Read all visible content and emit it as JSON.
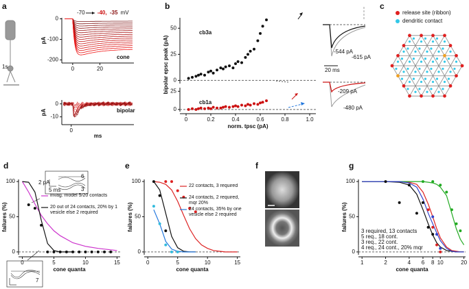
{
  "labels": {
    "panels": [
      "a",
      "b",
      "c",
      "d",
      "e",
      "f",
      "g"
    ],
    "a_header": [
      "-70",
      "-40,",
      "-35",
      "mV"
    ],
    "a_cell": "1s",
    "b_insets": [
      "-544 pA",
      "-615 pA",
      "20 ms",
      "-209 pA",
      "-480 pA"
    ],
    "c_legend": [
      "release site (ribbon)",
      "dendritic contact"
    ],
    "d_insets": [
      "6",
      "2 pA",
      "5 ms",
      "3",
      "7"
    ]
  },
  "chart_data": [
    {
      "type": "line",
      "label": "cone",
      "ylabel": "pA",
      "xlim": [
        -8,
        45
      ],
      "xticks": [
        0,
        20
      ],
      "ylim": [
        -215,
        5
      ],
      "yticks": [
        0,
        -100,
        -200
      ],
      "traces": "cone"
    },
    {
      "type": "line",
      "label": "bipolar",
      "ylabel": "pA",
      "xlabel": "ms",
      "xlim": [
        -3,
        20
      ],
      "xticks": [
        0
      ],
      "ylim": [
        -16,
        3
      ],
      "yticks": [
        0,
        -10
      ],
      "traces": "bipolar"
    },
    {
      "type": "scatter",
      "ylabel": "bipolar epsc peak (pA)",
      "xlim": [
        -0.05,
        1.05
      ],
      "ylim": [
        -3,
        60
      ],
      "yticks": [
        0,
        25,
        50
      ],
      "zero_line": true,
      "legend": "upper left",
      "legend_style": "label",
      "series": [
        {
          "name": "cb3a",
          "color": "#111111",
          "style": "points",
          "x": [
            0.02,
            0.05,
            0.08,
            0.1,
            0.12,
            0.15,
            0.18,
            0.2,
            0.22,
            0.25,
            0.28,
            0.3,
            0.32,
            0.35,
            0.38,
            0.4,
            0.42,
            0.45,
            0.48,
            0.5,
            0.52,
            0.55,
            0.58,
            0.6,
            0.62,
            0.65
          ],
          "values": [
            2,
            3,
            4,
            5,
            6,
            5,
            8,
            9,
            7,
            10,
            12,
            11,
            13,
            14,
            12,
            16,
            18,
            17,
            22,
            25,
            28,
            30,
            38,
            45,
            52,
            58
          ]
        }
      ]
    },
    {
      "type": "scatter",
      "xlabel": "norm. tpsc (pA)",
      "xlim": [
        -0.05,
        1.05
      ],
      "xticks": [
        0,
        0.2,
        0.4,
        0.6,
        0.8,
        {
          "value": 1,
          "label": "1.0"
        }
      ],
      "ylim": [
        -3,
        30
      ],
      "yticks": [
        0,
        25
      ],
      "zero_line": true,
      "legend": "upper left",
      "legend_style": "label",
      "series": [
        {
          "name": "cb1a",
          "color": "#cc1111",
          "style": "points",
          "x": [
            0.02,
            0.05,
            0.08,
            0.1,
            0.12,
            0.15,
            0.18,
            0.2,
            0.22,
            0.25,
            0.28,
            0.3,
            0.32,
            0.35,
            0.38,
            0.4,
            0.42,
            0.45,
            0.48,
            0.5,
            0.52,
            0.55,
            0.58,
            0.6,
            0.62,
            0.65
          ],
          "values": [
            0,
            1,
            0,
            1,
            2,
            1,
            2,
            1,
            3,
            2,
            2,
            3,
            4,
            3,
            4,
            5,
            4,
            6,
            5,
            7,
            6,
            8,
            7,
            9,
            10,
            12
          ]
        }
      ]
    },
    {
      "type": "line",
      "ylabel": "failures (%)",
      "xlabel": "cone quanta",
      "xlim": [
        -0.6,
        15.5
      ],
      "xticks": [
        0,
        5,
        10,
        15
      ],
      "ylim": [
        -4,
        103
      ],
      "yticks": [
        0,
        50,
        100
      ],
      "zero_line": true,
      "legend": "center right",
      "legend_style": "line",
      "series": [
        {
          "name": "invag. model 5/20 contacts",
          "color": "#cc33cc",
          "style": "line",
          "x": [
            0,
            1,
            2,
            3,
            4,
            5,
            6,
            8,
            10,
            12,
            15
          ],
          "values": [
            100,
            85,
            68,
            52,
            40,
            30,
            23,
            13,
            8,
            5,
            2
          ]
        },
        {
          "name": "20 out of 24 contacts, 20% by 1 vesicle else 2 required",
          "color": "#111111",
          "style": "line",
          "x": [
            0,
            1,
            2,
            3,
            4,
            5,
            6,
            8
          ],
          "values": [
            100,
            99,
            85,
            45,
            12,
            2,
            0,
            0
          ]
        },
        {
          "color": "#111111",
          "style": "points",
          "x": [
            1,
            2,
            3,
            4,
            5,
            6,
            7,
            8,
            9,
            10,
            11,
            12,
            13,
            14
          ],
          "values": [
            67,
            62,
            38,
            0,
            0,
            0,
            0,
            0,
            0,
            0,
            0,
            0,
            0,
            0
          ]
        }
      ]
    },
    {
      "type": "line",
      "ylabel": "failures (%)",
      "xlabel": "cone quanta",
      "xlim": [
        -0.6,
        15.5
      ],
      "xticks": [
        0,
        5,
        10,
        15
      ],
      "ylim": [
        -4,
        103
      ],
      "yticks": [
        0,
        50,
        100
      ],
      "zero_line": true,
      "legend": "upper right",
      "legend_style": "line",
      "series": [
        {
          "name": "22 contacts, 3 required",
          "color": "#dd2222",
          "style": "line",
          "x": [
            1,
            2,
            3,
            4,
            5,
            6,
            7,
            8,
            9,
            10,
            11,
            12,
            13,
            14,
            15
          ],
          "values": [
            100,
            99,
            96,
            88,
            72,
            52,
            33,
            19,
            10,
            5,
            2,
            1,
            0,
            0,
            0
          ]
        },
        {
          "name": "24 contacts, 2 required, mqr 20%",
          "color": "#111111",
          "style": "line",
          "x": [
            1,
            2,
            3,
            4,
            5,
            6,
            7,
            8
          ],
          "values": [
            100,
            88,
            55,
            22,
            6,
            1,
            0,
            0
          ]
        },
        {
          "name": "24 contacts, 35% by one vesicle else 2 required",
          "color": "#2277dd",
          "style": "line",
          "x": [
            1,
            2,
            3,
            4,
            5,
            6,
            7,
            8
          ],
          "values": [
            60,
            40,
            15,
            4,
            1,
            0,
            0,
            0
          ]
        },
        {
          "color": "#dd2222",
          "style": "points",
          "x": [
            3,
            4,
            5,
            6,
            7,
            8
          ],
          "values": [
            100,
            100,
            87,
            78,
            62,
            57
          ]
        },
        {
          "color": "#111111",
          "style": "points",
          "x": [
            1,
            2,
            3
          ],
          "values": [
            100,
            80,
            30
          ]
        },
        {
          "color": "#33bbdd",
          "style": "points",
          "x": [
            1,
            2,
            3,
            4,
            5
          ],
          "values": [
            65,
            40,
            10,
            0,
            0
          ]
        }
      ]
    },
    {
      "type": "line",
      "ylabel": "failures (%)",
      "xlabel": "cone quanta",
      "xscale": "log",
      "xlim": [
        0.9,
        21
      ],
      "xticks": [
        1,
        2,
        4,
        6,
        8,
        10,
        20
      ],
      "ylim": [
        -4,
        103
      ],
      "yticks": [
        0,
        50,
        100
      ],
      "zero_line": true,
      "legend": "lower left",
      "legend_style": "text",
      "series": [
        {
          "name": "3 required, 13 contacts",
          "color": "#dd2222",
          "style": "line",
          "x": [
            1,
            2,
            3,
            4,
            5,
            6,
            7,
            8,
            9,
            10,
            12,
            14,
            16,
            18,
            20
          ],
          "values": [
            100,
            100,
            100,
            99,
            96,
            85,
            68,
            50,
            33,
            20,
            7,
            2,
            1,
            0,
            0
          ]
        },
        {
          "name": "5 req., 18 cont.",
          "color": "#22aa22",
          "style": "line",
          "x": [
            1,
            2,
            3,
            4,
            5,
            6,
            7,
            8,
            9,
            10,
            12,
            14,
            16,
            18,
            20
          ],
          "values": [
            100,
            100,
            100,
            100,
            100,
            100,
            99,
            98,
            96,
            92,
            80,
            55,
            33,
            18,
            10
          ]
        },
        {
          "name": "3 req., 22 cont.",
          "color": "#111111",
          "style": "line",
          "x": [
            1,
            2,
            3,
            4,
            5,
            6,
            7,
            8,
            9,
            10,
            12,
            14,
            16,
            18,
            20
          ],
          "values": [
            100,
            100,
            99,
            95,
            82,
            60,
            40,
            24,
            13,
            7,
            2,
            1,
            0,
            0,
            0
          ]
        },
        {
          "name": "4 req., 24 cont., 20% mqr",
          "color": "#3344cc",
          "style": "line",
          "x": [
            1,
            2,
            3,
            4,
            5,
            6,
            7,
            8,
            9,
            10,
            12,
            14,
            16,
            18,
            20
          ],
          "values": [
            100,
            100,
            100,
            98,
            92,
            75,
            55,
            40,
            27,
            16,
            5,
            1,
            0,
            0,
            0
          ]
        },
        {
          "color": "#22aa22",
          "style": "points",
          "x": [
            6,
            8,
            10,
            12,
            14,
            16,
            18
          ],
          "values": [
            100,
            100,
            95,
            85,
            60,
            40,
            30
          ]
        },
        {
          "color": "#111111",
          "style": "points",
          "x": [
            2,
            3,
            4,
            5,
            6,
            7,
            8
          ],
          "values": [
            100,
            70,
            95,
            55,
            70,
            35,
            25
          ]
        },
        {
          "color": "#dd2222",
          "style": "points",
          "x": [
            7,
            8,
            9,
            10
          ],
          "values": [
            60,
            35,
            10,
            0
          ]
        },
        {
          "color": "#3344cc",
          "style": "points",
          "x": [
            8,
            9,
            10
          ],
          "values": [
            50,
            25,
            5
          ]
        }
      ]
    }
  ]
}
